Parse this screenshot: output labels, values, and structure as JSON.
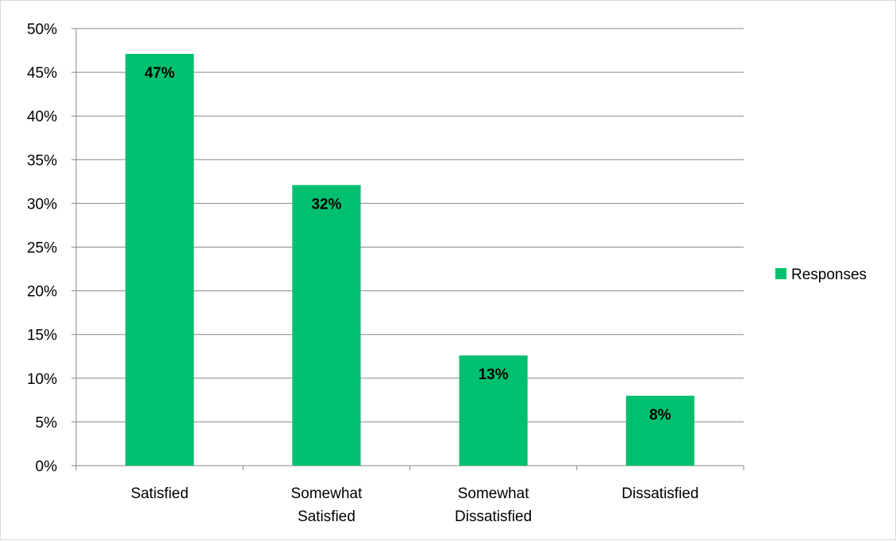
{
  "chart_data": {
    "type": "bar",
    "categories": [
      [
        "Satisfied"
      ],
      [
        "Somewhat",
        "Satisfied"
      ],
      [
        "Somewhat",
        "Dissatisfied"
      ],
      [
        "Dissatisfied"
      ]
    ],
    "series": [
      {
        "name": "Responses",
        "values": [
          47.1,
          32.1,
          12.6,
          8.0
        ],
        "labels": [
          "47%",
          "32%",
          "13%",
          "8%"
        ],
        "color": "#00c06f"
      }
    ],
    "yticks": [
      "0%",
      "5%",
      "10%",
      "15%",
      "20%",
      "25%",
      "30%",
      "35%",
      "40%",
      "45%",
      "50%"
    ],
    "ylim": [
      0,
      50
    ],
    "grid": true,
    "legend": "right",
    "title": "",
    "xlabel": "",
    "ylabel": ""
  }
}
